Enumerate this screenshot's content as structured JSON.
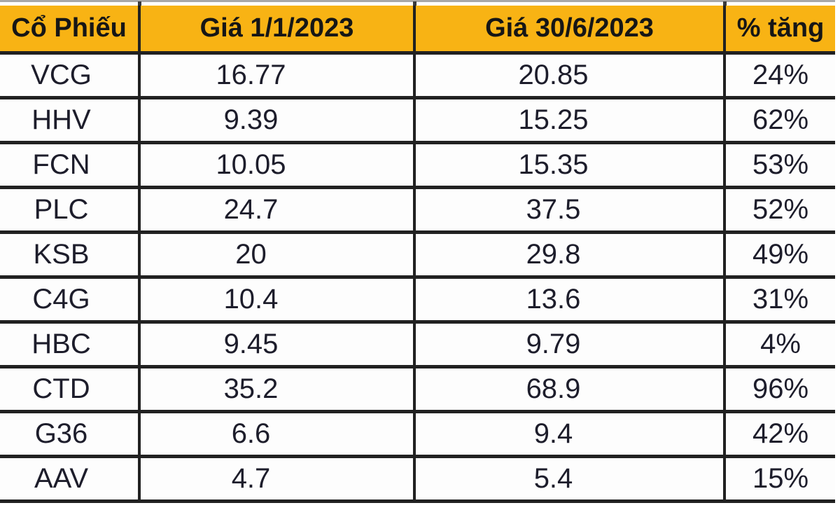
{
  "chart_data": {
    "type": "table",
    "columns": [
      "Cổ Phiếu",
      "Giá 1/1/2023",
      "Giá 30/6/2023",
      "% tăng"
    ],
    "rows": [
      {
        "ticker": "VCG",
        "price_jan": "16.77",
        "price_jun": "20.85",
        "pct_gain": "24%"
      },
      {
        "ticker": "HHV",
        "price_jan": "9.39",
        "price_jun": "15.25",
        "pct_gain": "62%"
      },
      {
        "ticker": "FCN",
        "price_jan": "10.05",
        "price_jun": "15.35",
        "pct_gain": "53%"
      },
      {
        "ticker": "PLC",
        "price_jan": "24.7",
        "price_jun": "37.5",
        "pct_gain": "52%"
      },
      {
        "ticker": "KSB",
        "price_jan": "20",
        "price_jun": "29.8",
        "pct_gain": "49%"
      },
      {
        "ticker": "C4G",
        "price_jan": "10.4",
        "price_jun": "13.6",
        "pct_gain": "31%"
      },
      {
        "ticker": "HBC",
        "price_jan": "9.45",
        "price_jun": "9.79",
        "pct_gain": "4%"
      },
      {
        "ticker": "CTD",
        "price_jan": "35.2",
        "price_jun": "68.9",
        "pct_gain": "96%"
      },
      {
        "ticker": "G36",
        "price_jan": "6.6",
        "price_jun": "9.4",
        "pct_gain": "42%"
      },
      {
        "ticker": "AAV",
        "price_jan": "4.7",
        "price_jun": "5.4",
        "pct_gain": "15%"
      }
    ]
  },
  "colors": {
    "header_bg": "#F8B314",
    "border": "#212121",
    "header_text": "#161616",
    "cell_text": "#1d1d2b",
    "top_gridline": "#a8a8a8"
  }
}
